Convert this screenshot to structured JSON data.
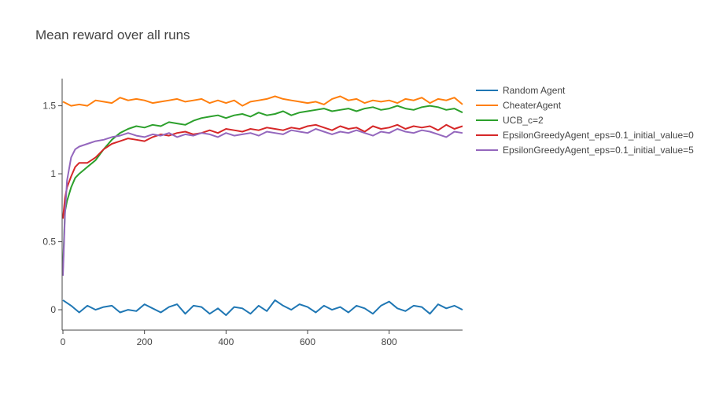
{
  "chart_data": {
    "type": "line",
    "title": "Mean reward over all runs",
    "xlabel": "",
    "ylabel": "",
    "xlim": [
      0,
      980
    ],
    "ylim": [
      -0.15,
      1.7
    ],
    "xticks": [
      0,
      200,
      400,
      600,
      800
    ],
    "yticks": [
      0,
      0.5,
      1,
      1.5
    ],
    "xtick_labels": [
      "0",
      "200",
      "400",
      "600",
      "800"
    ],
    "ytick_labels": [
      "0",
      "0.5",
      "1",
      "1.5"
    ],
    "grid": false,
    "legend_position": "right",
    "series": [
      {
        "name": "Random Agent",
        "color": "#1f77b4",
        "x": [
          0,
          20,
          40,
          60,
          80,
          100,
          120,
          140,
          160,
          180,
          200,
          220,
          240,
          260,
          280,
          300,
          320,
          340,
          360,
          380,
          400,
          420,
          440,
          460,
          480,
          500,
          520,
          540,
          560,
          580,
          600,
          620,
          640,
          660,
          680,
          700,
          720,
          740,
          760,
          780,
          800,
          820,
          840,
          860,
          880,
          900,
          920,
          940,
          960,
          980
        ],
        "y": [
          0.07,
          0.03,
          -0.02,
          0.03,
          0.0,
          0.02,
          0.03,
          -0.02,
          0.0,
          -0.01,
          0.04,
          0.01,
          -0.02,
          0.02,
          0.04,
          -0.03,
          0.03,
          0.02,
          -0.03,
          0.01,
          -0.04,
          0.02,
          0.01,
          -0.03,
          0.03,
          -0.01,
          0.07,
          0.03,
          0.0,
          0.04,
          0.02,
          -0.02,
          0.03,
          0.0,
          0.02,
          -0.02,
          0.03,
          0.01,
          -0.03,
          0.03,
          0.06,
          0.01,
          -0.01,
          0.03,
          0.02,
          -0.03,
          0.04,
          0.01,
          0.03,
          0.0
        ]
      },
      {
        "name": "CheaterAgent",
        "color": "#ff7f0e",
        "x": [
          0,
          20,
          40,
          60,
          80,
          100,
          120,
          140,
          160,
          180,
          200,
          220,
          240,
          260,
          280,
          300,
          320,
          340,
          360,
          380,
          400,
          420,
          440,
          460,
          480,
          500,
          520,
          540,
          560,
          580,
          600,
          620,
          640,
          660,
          680,
          700,
          720,
          740,
          760,
          780,
          800,
          820,
          840,
          860,
          880,
          900,
          920,
          940,
          960,
          980
        ],
        "y": [
          1.53,
          1.5,
          1.51,
          1.5,
          1.54,
          1.53,
          1.52,
          1.56,
          1.54,
          1.55,
          1.54,
          1.52,
          1.53,
          1.54,
          1.55,
          1.53,
          1.54,
          1.55,
          1.52,
          1.54,
          1.52,
          1.54,
          1.5,
          1.53,
          1.54,
          1.55,
          1.57,
          1.55,
          1.54,
          1.53,
          1.52,
          1.53,
          1.51,
          1.55,
          1.57,
          1.54,
          1.55,
          1.52,
          1.54,
          1.53,
          1.54,
          1.52,
          1.55,
          1.54,
          1.56,
          1.52,
          1.55,
          1.54,
          1.56,
          1.51
        ]
      },
      {
        "name": "UCB_c=2",
        "color": "#2ca02c",
        "x": [
          0,
          5,
          10,
          20,
          30,
          40,
          60,
          80,
          100,
          120,
          140,
          160,
          180,
          200,
          220,
          240,
          260,
          280,
          300,
          320,
          340,
          360,
          380,
          400,
          420,
          440,
          460,
          480,
          500,
          520,
          540,
          560,
          580,
          600,
          620,
          640,
          660,
          680,
          700,
          720,
          740,
          760,
          780,
          800,
          820,
          840,
          860,
          880,
          900,
          920,
          940,
          960,
          980
        ],
        "y": [
          0.3,
          0.72,
          0.8,
          0.9,
          0.97,
          1.0,
          1.05,
          1.1,
          1.18,
          1.25,
          1.3,
          1.33,
          1.35,
          1.34,
          1.36,
          1.35,
          1.38,
          1.37,
          1.36,
          1.39,
          1.41,
          1.42,
          1.43,
          1.41,
          1.43,
          1.44,
          1.42,
          1.45,
          1.43,
          1.44,
          1.46,
          1.43,
          1.45,
          1.46,
          1.47,
          1.48,
          1.46,
          1.47,
          1.48,
          1.46,
          1.48,
          1.49,
          1.47,
          1.48,
          1.5,
          1.48,
          1.47,
          1.49,
          1.5,
          1.49,
          1.47,
          1.48,
          1.45
        ]
      },
      {
        "name": "EpsilonGreedyAgent_eps=0.1_initial_value=0",
        "color": "#d62728",
        "x": [
          0,
          5,
          10,
          20,
          30,
          40,
          60,
          80,
          100,
          120,
          140,
          160,
          180,
          200,
          220,
          240,
          260,
          280,
          300,
          320,
          340,
          360,
          380,
          400,
          420,
          440,
          460,
          480,
          500,
          520,
          540,
          560,
          580,
          600,
          620,
          640,
          660,
          680,
          700,
          720,
          740,
          760,
          780,
          800,
          820,
          840,
          860,
          880,
          900,
          920,
          940,
          960,
          980
        ],
        "y": [
          0.67,
          0.82,
          0.9,
          0.98,
          1.05,
          1.08,
          1.08,
          1.12,
          1.18,
          1.22,
          1.24,
          1.26,
          1.25,
          1.24,
          1.27,
          1.29,
          1.28,
          1.3,
          1.31,
          1.29,
          1.3,
          1.32,
          1.3,
          1.33,
          1.32,
          1.31,
          1.33,
          1.32,
          1.34,
          1.33,
          1.32,
          1.34,
          1.33,
          1.35,
          1.36,
          1.34,
          1.32,
          1.35,
          1.33,
          1.34,
          1.31,
          1.35,
          1.33,
          1.34,
          1.36,
          1.33,
          1.35,
          1.34,
          1.35,
          1.32,
          1.36,
          1.33,
          1.35
        ]
      },
      {
        "name": "EpsilonGreedyAgent_eps=0.1_initial_value=5",
        "color": "#9467bd",
        "x": [
          0,
          5,
          10,
          20,
          30,
          40,
          60,
          80,
          100,
          120,
          140,
          160,
          180,
          200,
          220,
          240,
          260,
          280,
          300,
          320,
          340,
          360,
          380,
          400,
          420,
          440,
          460,
          480,
          500,
          520,
          540,
          560,
          580,
          600,
          620,
          640,
          660,
          680,
          700,
          720,
          740,
          760,
          780,
          800,
          820,
          840,
          860,
          880,
          900,
          920,
          940,
          960,
          980
        ],
        "y": [
          0.25,
          0.7,
          0.95,
          1.12,
          1.18,
          1.2,
          1.22,
          1.24,
          1.25,
          1.27,
          1.28,
          1.3,
          1.28,
          1.27,
          1.29,
          1.28,
          1.3,
          1.27,
          1.29,
          1.28,
          1.3,
          1.29,
          1.27,
          1.3,
          1.28,
          1.29,
          1.3,
          1.28,
          1.31,
          1.3,
          1.29,
          1.32,
          1.31,
          1.3,
          1.33,
          1.31,
          1.29,
          1.31,
          1.3,
          1.32,
          1.3,
          1.28,
          1.31,
          1.3,
          1.33,
          1.31,
          1.3,
          1.32,
          1.31,
          1.29,
          1.27,
          1.31,
          1.3
        ]
      }
    ]
  }
}
